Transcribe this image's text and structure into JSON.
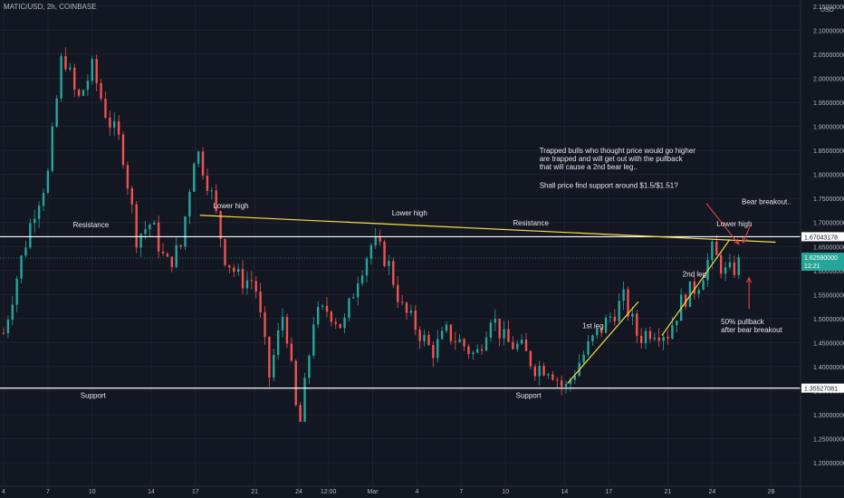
{
  "header": {
    "symbol_title": "MATIC/USD, 2h, COINBASE",
    "currency": "USD"
  },
  "colors": {
    "background": "#131722",
    "up": "#26a69a",
    "down": "#ef5350",
    "trendline": "#f6e04b",
    "level_line": "#ffffff",
    "arrow": "#e0443f"
  },
  "chart_data": {
    "type": "candlestick",
    "title": "MATIC/USD, 2h, COINBASE",
    "ylabel": "USD",
    "ylim": [
      1.18,
      2.17
    ],
    "y_ticks": [
      "2.15000000",
      "2.10000000",
      "2.05000000",
      "2.00000000",
      "1.95000000",
      "1.90000000",
      "1.85000000",
      "1.80000000",
      "1.75000000",
      "1.70000000",
      "1.65000000",
      "1.60000000",
      "1.55000000",
      "1.50000000",
      "1.45000000",
      "1.40000000",
      "1.35000000",
      "1.30000000",
      "1.25000000",
      "1.20000000"
    ],
    "y_tick_values": [
      2.15,
      2.1,
      2.05,
      2.0,
      1.95,
      1.9,
      1.85,
      1.8,
      1.75,
      1.7,
      1.65,
      1.6,
      1.55,
      1.5,
      1.45,
      1.4,
      1.35,
      1.3,
      1.25,
      1.2
    ],
    "x_ticks": [
      {
        "label": "4",
        "t": 0
      },
      {
        "label": "7",
        "t": 3
      },
      {
        "label": "10",
        "t": 6
      },
      {
        "label": "14",
        "t": 10
      },
      {
        "label": "17",
        "t": 13
      },
      {
        "label": "21",
        "t": 17
      },
      {
        "label": "24",
        "t": 20
      },
      {
        "label": "12:00",
        "t": 22
      },
      {
        "label": "Mar",
        "t": 25
      },
      {
        "label": "4",
        "t": 28
      },
      {
        "label": "7",
        "t": 31
      },
      {
        "label": "10",
        "t": 34
      },
      {
        "label": "14",
        "t": 38
      },
      {
        "label": "17",
        "t": 41
      },
      {
        "label": "21",
        "t": 45
      },
      {
        "label": "24",
        "t": 48
      },
      {
        "label": "28",
        "t": 52
      }
    ],
    "price_path": [
      [
        0,
        1.47
      ],
      [
        1,
        1.6
      ],
      [
        2,
        1.72
      ],
      [
        3,
        1.8
      ],
      [
        4,
        2.06
      ],
      [
        5,
        1.95
      ],
      [
        6,
        2.02
      ],
      [
        7,
        1.92
      ],
      [
        8,
        1.86
      ],
      [
        9,
        1.67
      ],
      [
        10,
        1.7
      ],
      [
        11,
        1.61
      ],
      [
        12,
        1.65
      ],
      [
        13,
        1.86
      ],
      [
        14,
        1.77
      ],
      [
        15,
        1.63
      ],
      [
        16,
        1.58
      ],
      [
        17,
        1.58
      ],
      [
        18,
        1.38
      ],
      [
        19,
        1.52
      ],
      [
        20,
        1.26
      ],
      [
        21,
        1.5
      ],
      [
        22,
        1.52
      ],
      [
        23,
        1.48
      ],
      [
        24,
        1.59
      ],
      [
        25,
        1.66
      ],
      [
        26,
        1.62
      ],
      [
        27,
        1.52
      ],
      [
        28,
        1.48
      ],
      [
        29,
        1.43
      ],
      [
        30,
        1.47
      ],
      [
        31,
        1.45
      ],
      [
        32,
        1.42
      ],
      [
        33,
        1.51
      ],
      [
        34,
        1.45
      ],
      [
        35,
        1.44
      ],
      [
        36,
        1.4
      ],
      [
        37,
        1.4
      ],
      [
        38,
        1.35
      ],
      [
        39,
        1.41
      ],
      [
        40,
        1.46
      ],
      [
        41,
        1.5
      ],
      [
        42,
        1.54
      ],
      [
        43,
        1.46
      ],
      [
        44,
        1.48
      ],
      [
        45,
        1.47
      ],
      [
        46,
        1.54
      ],
      [
        47,
        1.57
      ],
      [
        48,
        1.64
      ],
      [
        49,
        1.59
      ],
      [
        50,
        1.62
      ]
    ],
    "levels": [
      {
        "name": "Resistance",
        "value": 1.67043178,
        "label": "1.67043178"
      },
      {
        "name": "Support",
        "value": 1.35527081,
        "label": "1.35527081"
      }
    ],
    "current_price": {
      "value": 1.6259,
      "label": "1.62590000",
      "countdown": "12:21"
    },
    "trendlines": [
      {
        "name": "lower-highs",
        "from": [
          13.3,
          1.715
        ],
        "to": [
          52.3,
          1.659
        ]
      },
      {
        "name": "1st leg",
        "from": [
          38.2,
          1.365
        ],
        "to": [
          43.0,
          1.535
        ]
      },
      {
        "name": "2nd leg",
        "from": [
          44.6,
          1.465
        ],
        "to": [
          49.2,
          1.665
        ]
      }
    ],
    "annotations": [
      {
        "text": "Lower high",
        "t": 14.2,
        "y": 1.73
      },
      {
        "text": "Lower high",
        "t": 26.3,
        "y": 1.715
      },
      {
        "text": "Resistance",
        "t": 4.7,
        "y": 1.69
      },
      {
        "text": "Resistance",
        "t": 34.5,
        "y": 1.694
      },
      {
        "text": "Lower high",
        "t": 48.3,
        "y": 1.692
      },
      {
        "text": "Support",
        "t": 5.2,
        "y": 1.335
      },
      {
        "text": "Support",
        "t": 34.7,
        "y": 1.335
      },
      {
        "text": "2nd leg",
        "t": 46.0,
        "y": 1.587
      },
      {
        "text": "1st leg",
        "t": 39.2,
        "y": 1.48
      },
      {
        "text": "Bear breakout..",
        "t": 50.0,
        "y": 1.738
      },
      {
        "text": "Trapped bulls who thought price would go higher",
        "t": 36.3,
        "y": 1.845
      },
      {
        "text": "are trapped and will get out with the pullback",
        "t": 36.3,
        "y": 1.828
      },
      {
        "text": "that will cause a 2nd bear leg..",
        "t": 36.3,
        "y": 1.811
      },
      {
        "text": "Shall price find support around $1.5/$1.51?",
        "t": 36.3,
        "y": 1.772
      },
      {
        "text": "50% pullback",
        "t": 48.6,
        "y": 1.488
      },
      {
        "text": "after bear breakout",
        "t": 48.6,
        "y": 1.471
      }
    ]
  }
}
